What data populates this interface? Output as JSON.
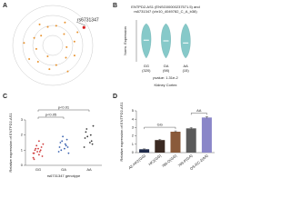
{
  "chart_data": [
    {
      "type": "polar-scatter",
      "label": "A",
      "annotation": "rs6731347",
      "color": "#e8922e",
      "highlight_color": "#d62020",
      "x": [
        10,
        28,
        45,
        62,
        80,
        97,
        115,
        133,
        150,
        170,
        188,
        205,
        222,
        240,
        258,
        275,
        292,
        310,
        328,
        345,
        60
      ],
      "values": [
        5,
        6.5,
        4,
        7,
        5.5,
        3.5,
        6,
        4.5,
        7.5,
        5,
        6,
        3,
        5.5,
        6.8,
        4.2,
        7.2,
        5,
        3.8,
        6.2,
        4.8,
        9
      ],
      "rlim": [
        0,
        10
      ]
    },
    {
      "type": "violin",
      "label": "B",
      "title": "ENTPD2-AS1 (ENSG00000237571.5) and",
      "subtitle": "rs6731347 (chr10_4049782_C_A_b38)",
      "ylabel": "Norm. Expression",
      "categories": [
        "GG",
        "GA",
        "AA"
      ],
      "counts": [
        "(320)",
        "(98)",
        "(15)"
      ],
      "values": [
        0.1,
        0.0,
        -0.3
      ],
      "ylim": [
        -3,
        3
      ],
      "color": "#86c9c9",
      "annotation": "pvalue: 1.31e-2",
      "xlabel": "Kidney Cortex"
    },
    {
      "type": "dot",
      "label": "C",
      "ylabel": "Relative expression of ENTPD2-AS1",
      "xlabel": "rs6731347 genotype",
      "categories": [
        "GG",
        "GA",
        "AA"
      ],
      "colors": [
        "#d03a3a",
        "#3a62b0",
        "#3a3a3a"
      ],
      "groups": [
        [
          0.5,
          0.7,
          0.8,
          0.9,
          1.0,
          1.0,
          1.1,
          1.2,
          1.3,
          0.6,
          0.9,
          1.4,
          1.1,
          0.8,
          1.6,
          0.4
        ],
        [
          0.9,
          1.1,
          1.2,
          1.4,
          1.5,
          1.3,
          1.0,
          1.7,
          1.6,
          1.2,
          1.9,
          0.8
        ],
        [
          1.2,
          1.5,
          1.8,
          2.0,
          2.2,
          1.6,
          2.4,
          1.4,
          1.9,
          2.6
        ]
      ],
      "ylim": [
        0,
        3
      ],
      "yticks": [
        0,
        1,
        2,
        3
      ],
      "comparisons": [
        {
          "pair": [
            0,
            1
          ],
          "label": "p<0.05"
        },
        {
          "pair": [
            0,
            2
          ],
          "label": "p<0.01"
        }
      ]
    },
    {
      "type": "bar",
      "label": "D",
      "ylabel": "Relative expression of ENTPD2-AS1",
      "categories": [
        "A2-HK2(GG)",
        "HK2(GG)",
        "786-O(GG)",
        "769-P(GA)",
        "OS-RC-2(AA)"
      ],
      "values": [
        0.4,
        1.5,
        2.5,
        2.9,
        4.2
      ],
      "errors": [
        0.05,
        0.1,
        0.1,
        0.1,
        0.1
      ],
      "colors": [
        "#1f2a4a",
        "#3b2a22",
        "#8a5a3a",
        "#5a5a5a",
        "#8a86c8"
      ],
      "ylim": [
        0,
        5
      ],
      "yticks": [
        0,
        1,
        2,
        3,
        4,
        5
      ],
      "comparisons": [
        {
          "pair": [
            0,
            2
          ],
          "label": "GG"
        },
        {
          "pair": [
            3,
            4
          ],
          "label": "AA"
        }
      ]
    }
  ]
}
